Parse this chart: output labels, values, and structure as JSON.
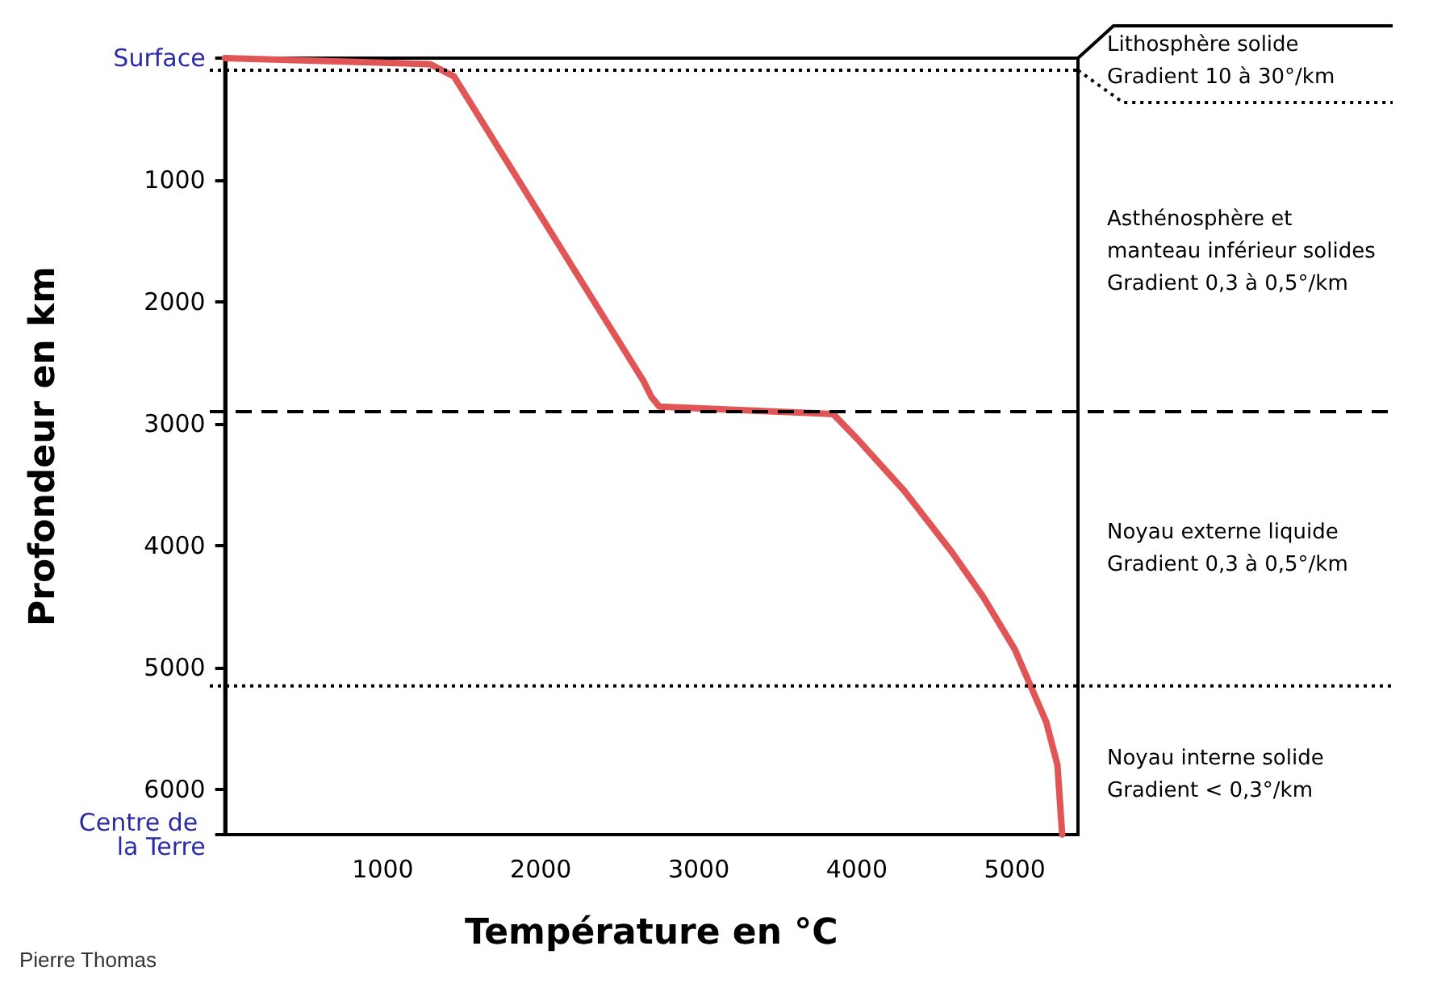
{
  "chart_data": {
    "type": "line",
    "xlabel": "Température en °C",
    "ylabel": "Profondeur en km",
    "x": [
      0,
      1300,
      1450,
      2650,
      2700,
      2750,
      3850,
      4000,
      4300,
      4600,
      4800,
      5000,
      5100,
      5200,
      5270,
      5300
    ],
    "series": [
      {
        "color": "#e05555",
        "values": [
          0,
          50,
          150,
          2650,
          2780,
          2860,
          2920,
          3120,
          3550,
          4050,
          4420,
          4850,
          5150,
          5450,
          5800,
          6370
        ]
      }
    ],
    "xlim": [
      0,
      5400
    ],
    "xticks": [
      1000,
      2000,
      3000,
      4000,
      5000
    ],
    "ylim": [
      6371,
      0
    ],
    "yticks": [
      {
        "value": 0,
        "label": "Surface"
      },
      1000,
      2000,
      3000,
      4000,
      5000,
      6000,
      {
        "value": 6371,
        "label": "Centre de la Terre"
      }
    ],
    "ref_lines": [
      {
        "axis": "y",
        "value": 100,
        "line_style": "dotted",
        "color": "#000000"
      },
      {
        "axis": "y",
        "value": 2900,
        "line_style": "dashed",
        "color": "#000000"
      },
      {
        "axis": "y",
        "value": 5150,
        "line_style": "dotted",
        "color": "#000000"
      }
    ],
    "annotations": [
      "Lithosphère solide\nGradient 10 à 30°/km",
      "Asthénosphère et\nmanteau inférieur solides\nGradient 0,3 à 0,5°/km",
      "Noyau externe liquide\nGradient 0,3 à 0,5°/km",
      "Noyau interne solide\nGradient < 0,3°/km",
      "Pierre Thomas"
    ],
    "grid": false,
    "marker": "none",
    "line_style": "solid"
  }
}
